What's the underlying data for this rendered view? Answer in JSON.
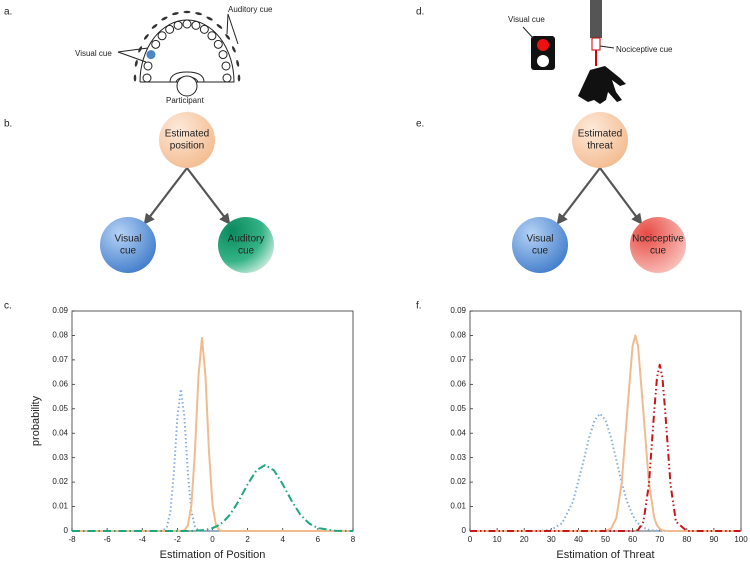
{
  "panels": {
    "a": "a.",
    "b": "b.",
    "c": "c.",
    "d": "d.",
    "e": "e.",
    "f": "f."
  },
  "setup_a": {
    "visual": "Visual cue",
    "auditory": "Auditory cue",
    "participant": "Participant"
  },
  "setup_d": {
    "visual": "Visual cue",
    "nociceptive": "Nociceptive cue"
  },
  "graph_b": {
    "top": [
      "Estimated",
      "position"
    ],
    "left": [
      "Visual",
      "cue"
    ],
    "right": [
      "Auditory",
      "cue"
    ]
  },
  "graph_e": {
    "top": [
      "Estimated",
      "threat"
    ],
    "left": [
      "Visual",
      "cue"
    ],
    "right": [
      "Nociceptive",
      "cue"
    ]
  },
  "chart_data": [
    {
      "type": "line",
      "xlabel": "Estimation of Position",
      "ylabel": "probability",
      "xlim": [
        -8,
        8
      ],
      "xticks": [
        -8,
        -6,
        -4,
        -2,
        0,
        2,
        4,
        6,
        8
      ],
      "ylim": [
        0,
        0.09
      ],
      "yticks": [
        0,
        0.01,
        0.02,
        0.03,
        0.04,
        0.05,
        0.06,
        0.07,
        0.08,
        0.09
      ],
      "x": [
        -8,
        -4,
        -3,
        -2.8,
        -2.6,
        -2.4,
        -2.2,
        -2.0,
        -1.8,
        -1.6,
        -1.4,
        -1.2,
        -1.0,
        -0.8,
        -0.6,
        -0.4,
        -0.2,
        0,
        0.2,
        0.4,
        0.6,
        1,
        1.5,
        2,
        2.5,
        3,
        3.5,
        4,
        4.5,
        5,
        5.5,
        6,
        7,
        8
      ],
      "series": [
        {
          "color": "#86aedc",
          "dash": "dotted",
          "values": [
            0,
            0,
            0,
            0.0002,
            0.0017,
            0.0078,
            0.0238,
            0.0465,
            0.058,
            0.0465,
            0.0238,
            0.0078,
            0.0017,
            0.0002,
            0,
            0,
            0,
            0,
            0,
            0,
            0,
            0,
            0,
            0,
            0,
            0,
            0,
            0,
            0,
            0,
            0,
            0,
            0,
            0
          ]
        },
        {
          "color": "#f2bb8e",
          "dash": "solid",
          "values": [
            0,
            0,
            0,
            0,
            0,
            0,
            0,
            0,
            0,
            0.0003,
            0.0023,
            0.0107,
            0.0325,
            0.0633,
            0.079,
            0.0633,
            0.0325,
            0.0107,
            0.0023,
            0.0003,
            0,
            0,
            0,
            0,
            0,
            0,
            0,
            0,
            0,
            0,
            0,
            0,
            0,
            0
          ]
        },
        {
          "color": "#1ea67c",
          "dash": "dashdot",
          "values": [
            0,
            0,
            0,
            0,
            0,
            0,
            0,
            0,
            0,
            0,
            0,
            0,
            0.0001,
            0.0002,
            0.0003,
            0.0005,
            0.0008,
            0.0012,
            0.0018,
            0.0026,
            0.0037,
            0.0067,
            0.0124,
            0.0191,
            0.0248,
            0.027,
            0.0248,
            0.0191,
            0.0124,
            0.0067,
            0.0031,
            0.0012,
            0.0001,
            0
          ]
        }
      ]
    },
    {
      "type": "line",
      "xlabel": "Estimation of Threat",
      "xlim": [
        0,
        100
      ],
      "xticks": [
        0,
        10,
        20,
        30,
        40,
        50,
        60,
        70,
        80,
        90,
        100
      ],
      "ylim": [
        0,
        0.09
      ],
      "yticks": [
        0,
        0.01,
        0.02,
        0.03,
        0.04,
        0.05,
        0.06,
        0.07,
        0.08,
        0.09
      ],
      "x": [
        0,
        10,
        20,
        26,
        30,
        34,
        38,
        42,
        44,
        46,
        48,
        50,
        52,
        54,
        56,
        58,
        60,
        61,
        62,
        64,
        66,
        68,
        69,
        70,
        71,
        72,
        74,
        76,
        80,
        90,
        100
      ],
      "series": [
        {
          "color": "#86aedc",
          "dash": "dotted",
          "values": [
            0,
            0,
            0,
            0.0001,
            0.0005,
            0.0032,
            0.012,
            0.0291,
            0.0384,
            0.0454,
            0.048,
            0.0454,
            0.0384,
            0.0291,
            0.0197,
            0.012,
            0.0065,
            0.0046,
            0.0032,
            0.0014,
            0.0005,
            0.0002,
            0.0001,
            0.0001,
            0,
            0,
            0,
            0,
            0,
            0,
            0
          ]
        },
        {
          "color": "#f2bb8e",
          "dash": "solid",
          "values": [
            0,
            0,
            0,
            0,
            0,
            0,
            0,
            0,
            0,
            0,
            0,
            0.0001,
            0.0009,
            0.0053,
            0.0199,
            0.0485,
            0.0757,
            0.08,
            0.0757,
            0.0485,
            0.0199,
            0.0053,
            0.0023,
            0.0009,
            0.0003,
            0.0001,
            0,
            0,
            0,
            0,
            0
          ]
        },
        {
          "color": "#c4171c",
          "dash": "dashdotdot",
          "values": [
            0,
            0,
            0,
            0,
            0,
            0,
            0,
            0,
            0,
            0,
            0,
            0,
            0,
            0,
            0,
            0,
            0,
            0.0001,
            0.0004,
            0.0038,
            0.0189,
            0.0494,
            0.0628,
            0.068,
            0.0628,
            0.0494,
            0.0189,
            0.0038,
            0,
            0,
            0
          ]
        }
      ]
    }
  ]
}
